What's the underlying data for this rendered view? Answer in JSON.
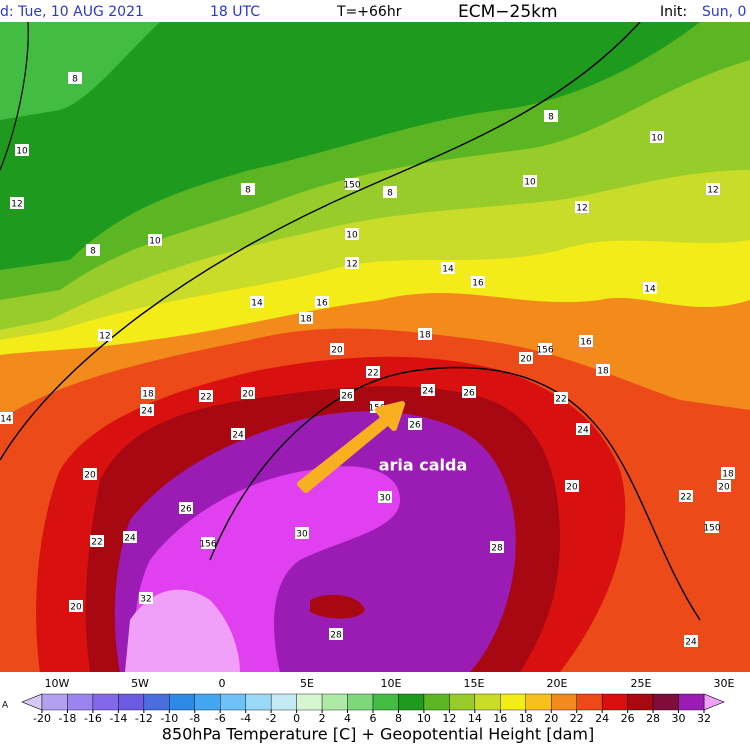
{
  "header": {
    "valid": "d: Tue, 10 AUG 2021",
    "time": "18 UTC",
    "step": "T=+66hr",
    "model": "ECM−25km",
    "init_label": "Init:",
    "init_value": "Sun, 0"
  },
  "map": {
    "annotation": "aria calda",
    "corner": "A",
    "longitudes": [
      "10W",
      "5W",
      "0",
      "5E",
      "10E",
      "15E",
      "20E",
      "25E",
      "30E"
    ],
    "contour_labels": [
      "8",
      "8",
      "8",
      "8",
      "8",
      "10",
      "10",
      "10",
      "10",
      "10",
      "12",
      "12",
      "12",
      "12",
      "12",
      "14",
      "14",
      "14",
      "14",
      "16",
      "16",
      "16",
      "18",
      "18",
      "18",
      "18",
      "18",
      "150",
      "156",
      "156",
      "156",
      "150",
      "20",
      "20",
      "20",
      "20",
      "20",
      "20",
      "20",
      "22",
      "22",
      "22",
      "22",
      "22",
      "24",
      "24",
      "24",
      "24",
      "24",
      "24",
      "26",
      "26",
      "26",
      "26",
      "28",
      "28",
      "30",
      "30",
      "32"
    ]
  },
  "colorbar": {
    "title": "850hPa Temperature [C] + Geopotential Height [dam]",
    "ticks": [
      -20,
      -18,
      -16,
      -14,
      -12,
      -10,
      -8,
      -6,
      -4,
      -2,
      0,
      2,
      4,
      6,
      8,
      10,
      12,
      14,
      16,
      18,
      20,
      22,
      24,
      26,
      28,
      30,
      32
    ],
    "colors": [
      "#b4a0f0",
      "#9c84ee",
      "#8468ea",
      "#6c5ce4",
      "#4a6ee0",
      "#2c8ae6",
      "#44a6ee",
      "#6ec2f6",
      "#9ad8f8",
      "#c4eaf6",
      "#d6f6d2",
      "#aeeaa6",
      "#7cd87a",
      "#42bc42",
      "#1e9a1e",
      "#5cb624",
      "#98cc2a",
      "#cadc2a",
      "#f4ec18",
      "#f8c01e",
      "#f28a1c",
      "#ec4a18",
      "#d81010",
      "#a80812",
      "#800c3c",
      "#9a1cb4"
    ],
    "under_color": "#d8c8f8",
    "over_color": "#f0a0f8"
  }
}
